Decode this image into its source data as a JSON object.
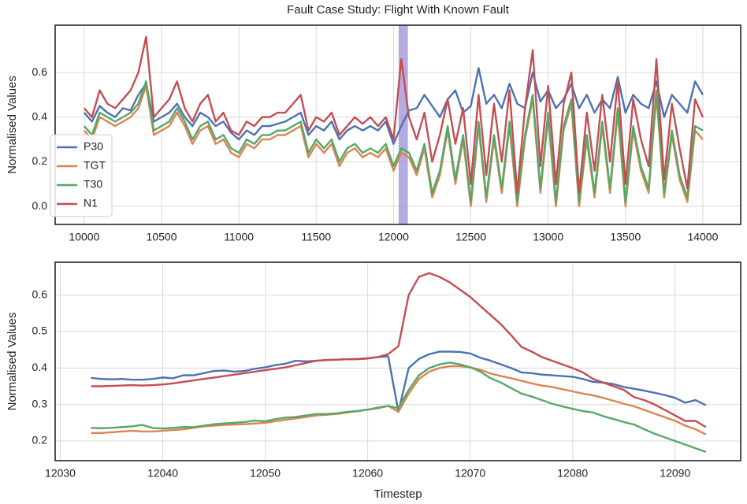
{
  "title": "Fault Case Study: Flight With Known Fault",
  "chart_data": [
    {
      "type": "line",
      "ylabel": "Normalised Values",
      "xlim": [
        9812,
        14245
      ],
      "xticks": [
        10000,
        10500,
        11000,
        11500,
        12000,
        12500,
        13000,
        13500,
        14000
      ],
      "ylim": [
        -0.081,
        0.812
      ],
      "yticks": [
        {
          "value": 0,
          "label": "0.0"
        },
        0.2,
        0.4,
        0.6
      ],
      "grid": true,
      "legend": "lower left",
      "span": [
        12033,
        12093
      ],
      "span_color": "#9d8fd6",
      "x": [
        10000,
        10050,
        10100,
        10150,
        10200,
        10250,
        10300,
        10350,
        10400,
        10450,
        10500,
        10550,
        10600,
        10650,
        10700,
        10750,
        10800,
        10850,
        10900,
        10950,
        11000,
        11050,
        11100,
        11150,
        11200,
        11250,
        11300,
        11350,
        11400,
        11450,
        11500,
        11550,
        11600,
        11650,
        11700,
        11750,
        11800,
        11850,
        11900,
        11950,
        12000,
        12050,
        12100,
        12150,
        12200,
        12250,
        12300,
        12350,
        12400,
        12450,
        12500,
        12550,
        12600,
        12650,
        12700,
        12750,
        12800,
        12850,
        12900,
        12950,
        13000,
        13050,
        13100,
        13150,
        13200,
        13250,
        13300,
        13350,
        13400,
        13450,
        13500,
        13550,
        13600,
        13650,
        13700,
        13750,
        13800,
        13850,
        13900,
        13950,
        14000
      ],
      "series": [
        {
          "name": "P30",
          "color": "#4c72b0",
          "values": [
            0.42,
            0.38,
            0.45,
            0.42,
            0.4,
            0.44,
            0.43,
            0.5,
            0.55,
            0.38,
            0.4,
            0.42,
            0.46,
            0.4,
            0.36,
            0.42,
            0.4,
            0.36,
            0.38,
            0.33,
            0.3,
            0.34,
            0.32,
            0.36,
            0.36,
            0.37,
            0.38,
            0.4,
            0.42,
            0.32,
            0.36,
            0.34,
            0.38,
            0.3,
            0.34,
            0.36,
            0.34,
            0.36,
            0.34,
            0.38,
            0.28,
            0.36,
            0.43,
            0.44,
            0.5,
            0.45,
            0.4,
            0.48,
            0.52,
            0.42,
            0.45,
            0.62,
            0.46,
            0.5,
            0.44,
            0.55,
            0.46,
            0.44,
            0.6,
            0.47,
            0.52,
            0.44,
            0.48,
            0.55,
            0.44,
            0.5,
            0.42,
            0.48,
            0.44,
            0.58,
            0.42,
            0.5,
            0.46,
            0.44,
            0.56,
            0.4,
            0.5,
            0.46,
            0.42,
            0.56,
            0.5
          ]
        },
        {
          "name": "TGT",
          "color": "#dd8452",
          "values": [
            0.34,
            0.3,
            0.4,
            0.38,
            0.36,
            0.38,
            0.4,
            0.44,
            0.54,
            0.32,
            0.34,
            0.36,
            0.42,
            0.36,
            0.28,
            0.34,
            0.36,
            0.28,
            0.3,
            0.24,
            0.22,
            0.28,
            0.26,
            0.3,
            0.3,
            0.32,
            0.32,
            0.34,
            0.36,
            0.22,
            0.28,
            0.24,
            0.28,
            0.18,
            0.24,
            0.26,
            0.22,
            0.24,
            0.22,
            0.26,
            0.16,
            0.24,
            0.22,
            0.14,
            0.26,
            0.04,
            0.14,
            0.34,
            0.1,
            0.3,
            0.0,
            0.36,
            0.02,
            0.3,
            0.06,
            0.36,
            0.0,
            0.3,
            0.48,
            0.06,
            0.4,
            0.0,
            0.34,
            0.46,
            0.0,
            0.3,
            0.04,
            0.36,
            0.06,
            0.42,
            0.0,
            0.34,
            0.16,
            0.06,
            0.5,
            0.04,
            0.32,
            0.12,
            0.02,
            0.34,
            0.3
          ]
        },
        {
          "name": "T30",
          "color": "#55a868",
          "values": [
            0.36,
            0.32,
            0.42,
            0.4,
            0.38,
            0.4,
            0.42,
            0.46,
            0.56,
            0.34,
            0.36,
            0.38,
            0.44,
            0.38,
            0.3,
            0.36,
            0.38,
            0.3,
            0.32,
            0.26,
            0.24,
            0.3,
            0.28,
            0.32,
            0.32,
            0.34,
            0.34,
            0.36,
            0.38,
            0.24,
            0.3,
            0.26,
            0.3,
            0.2,
            0.26,
            0.28,
            0.24,
            0.26,
            0.24,
            0.28,
            0.18,
            0.26,
            0.24,
            0.16,
            0.28,
            0.06,
            0.16,
            0.36,
            0.12,
            0.32,
            0.02,
            0.38,
            0.04,
            0.32,
            0.08,
            0.38,
            0.02,
            0.32,
            0.5,
            0.08,
            0.42,
            0.02,
            0.36,
            0.48,
            0.02,
            0.32,
            0.06,
            0.38,
            0.08,
            0.44,
            0.02,
            0.36,
            0.18,
            0.08,
            0.52,
            0.06,
            0.34,
            0.14,
            0.04,
            0.36,
            0.34
          ]
        },
        {
          "name": "N1",
          "color": "#c44e52",
          "values": [
            0.44,
            0.4,
            0.52,
            0.46,
            0.44,
            0.48,
            0.52,
            0.6,
            0.76,
            0.4,
            0.44,
            0.48,
            0.56,
            0.44,
            0.38,
            0.46,
            0.5,
            0.38,
            0.42,
            0.34,
            0.32,
            0.38,
            0.36,
            0.4,
            0.4,
            0.42,
            0.42,
            0.46,
            0.5,
            0.34,
            0.4,
            0.38,
            0.42,
            0.32,
            0.36,
            0.4,
            0.37,
            0.4,
            0.36,
            0.4,
            0.3,
            0.66,
            0.4,
            0.3,
            0.42,
            0.2,
            0.32,
            0.48,
            0.28,
            0.44,
            0.1,
            0.5,
            0.14,
            0.46,
            0.2,
            0.52,
            0.06,
            0.44,
            0.7,
            0.18,
            0.54,
            0.1,
            0.46,
            0.6,
            0.06,
            0.42,
            0.16,
            0.5,
            0.2,
            0.56,
            0.1,
            0.48,
            0.3,
            0.18,
            0.66,
            0.12,
            0.46,
            0.26,
            0.08,
            0.48,
            0.4
          ]
        }
      ]
    },
    {
      "type": "line",
      "ylabel": "Normalised Values",
      "xlabel": "Timestep",
      "xlim": [
        12029.5,
        12096.4
      ],
      "xticks": [
        12030,
        12040,
        12050,
        12060,
        12070,
        12080,
        12090
      ],
      "ylim": [
        0.146,
        0.69
      ],
      "yticks": [
        0.2,
        0.3,
        0.4,
        0.5,
        0.6
      ],
      "grid": true,
      "x": [
        12033,
        12034,
        12035,
        12036,
        12037,
        12038,
        12039,
        12040,
        12041,
        12042,
        12043,
        12044,
        12045,
        12046,
        12047,
        12048,
        12049,
        12050,
        12051,
        12052,
        12053,
        12054,
        12055,
        12056,
        12057,
        12058,
        12059,
        12060,
        12061,
        12062,
        12063,
        12064,
        12065,
        12066,
        12067,
        12068,
        12069,
        12070,
        12071,
        12072,
        12073,
        12074,
        12075,
        12076,
        12077,
        12078,
        12079,
        12080,
        12081,
        12082,
        12083,
        12084,
        12085,
        12086,
        12087,
        12088,
        12089,
        12090,
        12091,
        12092,
        12093
      ],
      "series": [
        {
          "color": "#4c72b0",
          "values": [
            0.373,
            0.37,
            0.369,
            0.37,
            0.368,
            0.368,
            0.37,
            0.374,
            0.372,
            0.38,
            0.38,
            0.386,
            0.392,
            0.393,
            0.39,
            0.392,
            0.398,
            0.402,
            0.408,
            0.412,
            0.42,
            0.418,
            0.42,
            0.422,
            0.423,
            0.424,
            0.425,
            0.427,
            0.43,
            0.432,
            0.28,
            0.4,
            0.425,
            0.438,
            0.445,
            0.445,
            0.444,
            0.44,
            0.428,
            0.42,
            0.41,
            0.4,
            0.388,
            0.386,
            0.382,
            0.38,
            0.378,
            0.376,
            0.37,
            0.362,
            0.36,
            0.356,
            0.348,
            0.343,
            0.338,
            0.332,
            0.326,
            0.318,
            0.305,
            0.312,
            0.298
          ]
        },
        {
          "color": "#dd8452",
          "values": [
            0.222,
            0.222,
            0.224,
            0.226,
            0.228,
            0.226,
            0.226,
            0.228,
            0.23,
            0.232,
            0.236,
            0.24,
            0.242,
            0.244,
            0.245,
            0.246,
            0.248,
            0.25,
            0.254,
            0.258,
            0.262,
            0.266,
            0.27,
            0.272,
            0.274,
            0.278,
            0.282,
            0.286,
            0.292,
            0.296,
            0.28,
            0.33,
            0.37,
            0.39,
            0.4,
            0.405,
            0.405,
            0.402,
            0.395,
            0.385,
            0.378,
            0.372,
            0.365,
            0.358,
            0.352,
            0.348,
            0.342,
            0.336,
            0.33,
            0.325,
            0.318,
            0.31,
            0.302,
            0.295,
            0.285,
            0.275,
            0.265,
            0.255,
            0.242,
            0.232,
            0.218
          ]
        },
        {
          "color": "#55a868",
          "values": [
            0.236,
            0.235,
            0.236,
            0.238,
            0.24,
            0.244,
            0.236,
            0.234,
            0.236,
            0.238,
            0.238,
            0.242,
            0.246,
            0.248,
            0.25,
            0.252,
            0.256,
            0.254,
            0.26,
            0.264,
            0.266,
            0.27,
            0.274,
            0.274,
            0.276,
            0.28,
            0.282,
            0.286,
            0.29,
            0.296,
            0.29,
            0.34,
            0.38,
            0.4,
            0.41,
            0.415,
            0.41,
            0.402,
            0.39,
            0.372,
            0.36,
            0.345,
            0.33,
            0.322,
            0.312,
            0.302,
            0.295,
            0.288,
            0.282,
            0.278,
            0.268,
            0.26,
            0.252,
            0.245,
            0.232,
            0.22,
            0.21,
            0.2,
            0.19,
            0.18,
            0.17
          ]
        },
        {
          "color": "#c44e52",
          "values": [
            0.35,
            0.35,
            0.351,
            0.352,
            0.353,
            0.352,
            0.353,
            0.355,
            0.358,
            0.362,
            0.366,
            0.37,
            0.374,
            0.378,
            0.382,
            0.386,
            0.39,
            0.394,
            0.398,
            0.402,
            0.408,
            0.414,
            0.42,
            0.422,
            0.423,
            0.424,
            0.424,
            0.426,
            0.43,
            0.438,
            0.46,
            0.6,
            0.65,
            0.66,
            0.65,
            0.635,
            0.615,
            0.595,
            0.57,
            0.545,
            0.52,
            0.49,
            0.458,
            0.445,
            0.43,
            0.42,
            0.41,
            0.4,
            0.388,
            0.37,
            0.36,
            0.35,
            0.34,
            0.32,
            0.312,
            0.3,
            0.285,
            0.27,
            0.255,
            0.255,
            0.238
          ]
        }
      ]
    }
  ]
}
